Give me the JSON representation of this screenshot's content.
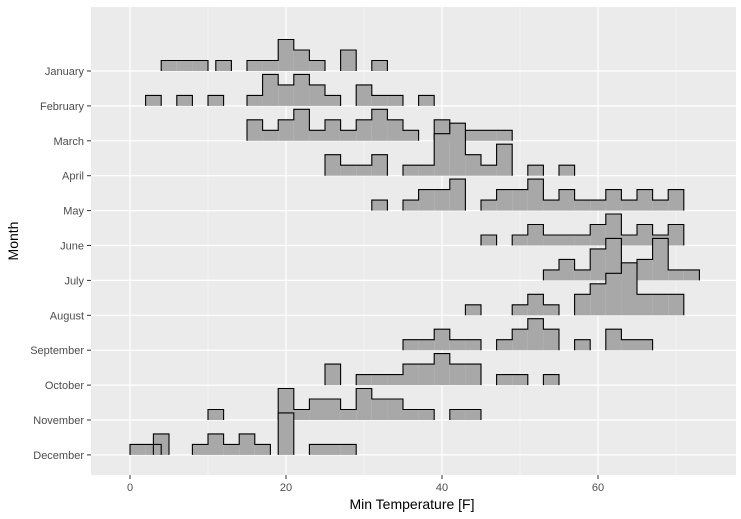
{
  "chart_data": {
    "type": "ridgeline-histogram",
    "xlabel": "Min Temperature [F]",
    "ylabel": "Month",
    "xlim": [
      -5,
      77
    ],
    "x_ticks": [
      0,
      20,
      40,
      60
    ],
    "bin_width": 2,
    "grid": true,
    "legend": "none",
    "colors": {
      "panel": "#ebebeb",
      "grid_major": "#ffffff",
      "fill": "#a8a8a8",
      "stroke": "#000000",
      "tick_text": "#4d4d4d"
    },
    "series": [
      {
        "name": "January",
        "bins": [
          [
            4,
            1
          ],
          [
            6,
            1
          ],
          [
            8,
            1
          ],
          [
            11,
            1
          ],
          [
            15,
            1
          ],
          [
            17,
            1
          ],
          [
            19,
            3
          ],
          [
            21,
            2
          ],
          [
            23,
            1
          ],
          [
            27,
            2
          ],
          [
            31,
            1
          ]
        ]
      },
      {
        "name": "February",
        "bins": [
          [
            2,
            1
          ],
          [
            6,
            1
          ],
          [
            10,
            1
          ],
          [
            15,
            1
          ],
          [
            17,
            3
          ],
          [
            19,
            2
          ],
          [
            21,
            3
          ],
          [
            23,
            2
          ],
          [
            25,
            1
          ],
          [
            29,
            2
          ],
          [
            31,
            1
          ],
          [
            33,
            1
          ],
          [
            37,
            1
          ]
        ]
      },
      {
        "name": "March",
        "bins": [
          [
            15,
            2
          ],
          [
            17,
            1
          ],
          [
            19,
            2
          ],
          [
            21,
            3
          ],
          [
            23,
            1
          ],
          [
            25,
            2
          ],
          [
            27,
            1
          ],
          [
            29,
            2
          ],
          [
            31,
            3
          ],
          [
            33,
            2
          ],
          [
            35,
            1
          ],
          [
            39,
            2
          ],
          [
            41,
            1
          ],
          [
            43,
            1
          ],
          [
            45,
            1
          ],
          [
            47,
            1
          ]
        ]
      },
      {
        "name": "April",
        "bins": [
          [
            25,
            2
          ],
          [
            27,
            1
          ],
          [
            29,
            1
          ],
          [
            31,
            2
          ],
          [
            35,
            1
          ],
          [
            37,
            1
          ],
          [
            39,
            4
          ],
          [
            41,
            5
          ],
          [
            43,
            2
          ],
          [
            45,
            1
          ],
          [
            47,
            3
          ],
          [
            51,
            1
          ],
          [
            55,
            1
          ]
        ]
      },
      {
        "name": "May",
        "bins": [
          [
            31,
            1
          ],
          [
            35,
            1
          ],
          [
            37,
            2
          ],
          [
            39,
            2
          ],
          [
            41,
            3
          ],
          [
            45,
            1
          ],
          [
            47,
            2
          ],
          [
            49,
            2
          ],
          [
            51,
            3
          ],
          [
            53,
            1
          ],
          [
            55,
            2
          ],
          [
            57,
            1
          ],
          [
            59,
            1
          ],
          [
            61,
            2
          ],
          [
            63,
            1
          ],
          [
            65,
            2
          ],
          [
            67,
            1
          ],
          [
            69,
            2
          ]
        ]
      },
      {
        "name": "June",
        "bins": [
          [
            45,
            1
          ],
          [
            49,
            1
          ],
          [
            51,
            2
          ],
          [
            53,
            1
          ],
          [
            55,
            1
          ],
          [
            57,
            1
          ],
          [
            59,
            2
          ],
          [
            61,
            3
          ],
          [
            63,
            1
          ],
          [
            65,
            2
          ],
          [
            67,
            1
          ],
          [
            69,
            2
          ]
        ]
      },
      {
        "name": "July",
        "bins": [
          [
            53,
            1
          ],
          [
            55,
            2
          ],
          [
            57,
            1
          ],
          [
            59,
            3
          ],
          [
            61,
            4
          ],
          [
            63,
            1
          ],
          [
            65,
            2
          ],
          [
            67,
            4
          ],
          [
            69,
            1
          ],
          [
            71,
            1
          ]
        ]
      },
      {
        "name": "August",
        "bins": [
          [
            43,
            1
          ],
          [
            49,
            1
          ],
          [
            51,
            2
          ],
          [
            53,
            1
          ],
          [
            57,
            2
          ],
          [
            59,
            3
          ],
          [
            61,
            4
          ],
          [
            63,
            5
          ],
          [
            65,
            2
          ],
          [
            67,
            2
          ],
          [
            69,
            2
          ]
        ]
      },
      {
        "name": "September",
        "bins": [
          [
            35,
            1
          ],
          [
            37,
            1
          ],
          [
            39,
            2
          ],
          [
            41,
            1
          ],
          [
            43,
            1
          ],
          [
            47,
            1
          ],
          [
            49,
            2
          ],
          [
            51,
            3
          ],
          [
            53,
            2
          ],
          [
            57,
            1
          ],
          [
            61,
            2
          ],
          [
            63,
            1
          ],
          [
            65,
            1
          ]
        ]
      },
      {
        "name": "October",
        "bins": [
          [
            25,
            2
          ],
          [
            29,
            1
          ],
          [
            31,
            1
          ],
          [
            33,
            1
          ],
          [
            35,
            2
          ],
          [
            37,
            2
          ],
          [
            39,
            3
          ],
          [
            41,
            2
          ],
          [
            43,
            2
          ],
          [
            47,
            1
          ],
          [
            49,
            1
          ],
          [
            53,
            1
          ]
        ]
      },
      {
        "name": "November",
        "bins": [
          [
            10,
            1
          ],
          [
            19,
            3
          ],
          [
            21,
            1
          ],
          [
            23,
            2
          ],
          [
            25,
            2
          ],
          [
            27,
            1
          ],
          [
            29,
            3
          ],
          [
            31,
            2
          ],
          [
            33,
            2
          ],
          [
            35,
            1
          ],
          [
            37,
            1
          ],
          [
            41,
            1
          ],
          [
            43,
            1
          ]
        ]
      },
      {
        "name": "December",
        "bins": [
          [
            0,
            1
          ],
          [
            2,
            1
          ],
          [
            3,
            2
          ],
          [
            8,
            1
          ],
          [
            10,
            2
          ],
          [
            12,
            1
          ],
          [
            14,
            2
          ],
          [
            16,
            1
          ],
          [
            19,
            4
          ],
          [
            23,
            1
          ],
          [
            25,
            1
          ],
          [
            27,
            1
          ]
        ]
      }
    ]
  }
}
